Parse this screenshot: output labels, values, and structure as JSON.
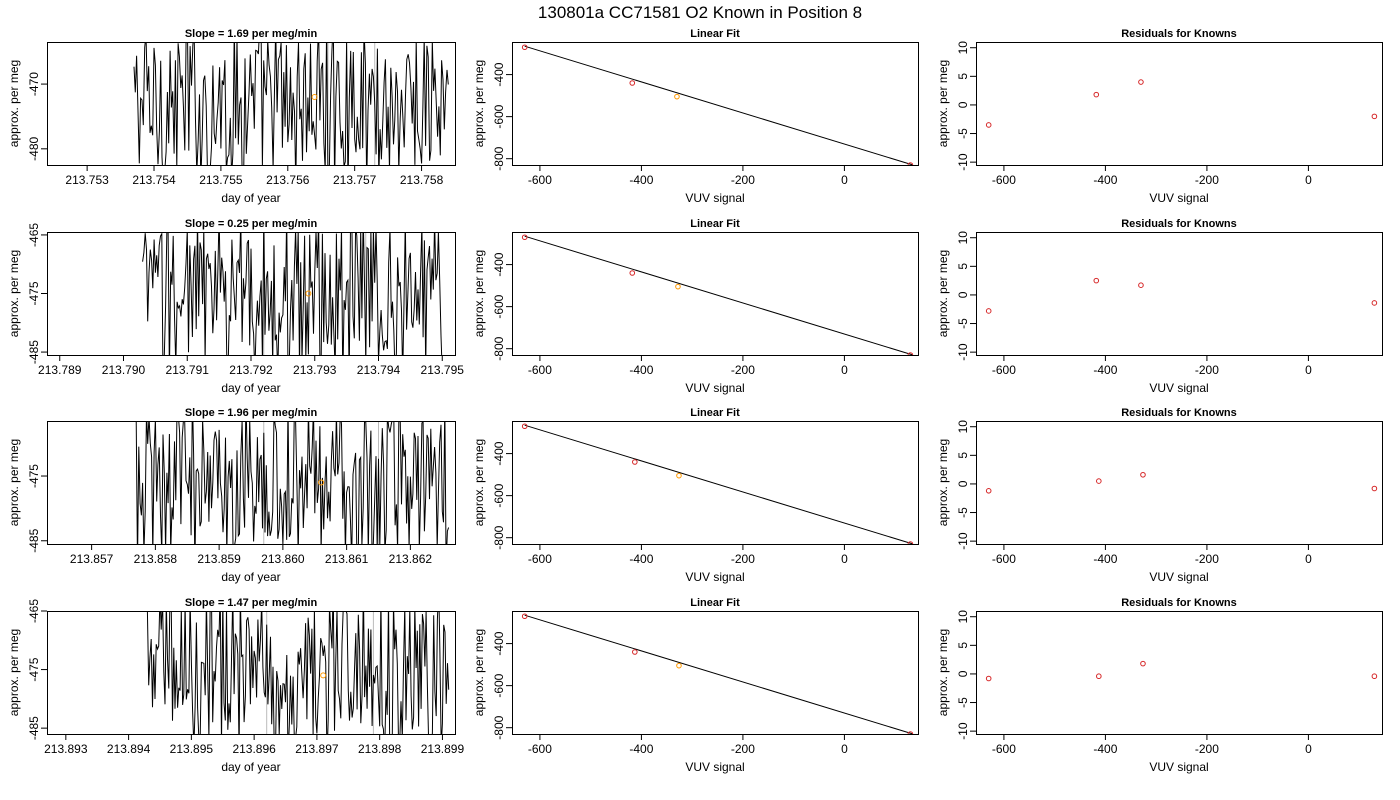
{
  "figure": {
    "title": "130801a     CC71581   O2 Known in Position  8"
  },
  "colors": {
    "line": "#000000",
    "point": "#d62728",
    "highlight": "#ff9900",
    "vline": "#bbbbbb",
    "frame": "#000000"
  },
  "chart_data": [
    {
      "type": "line",
      "title": "Slope =  1.69  per meg/min",
      "xlabel": "day of year",
      "ylabel": "approx. per meg",
      "xlim": [
        213.7524,
        213.7585
      ],
      "ylim": [
        -482.5,
        -463.5
      ],
      "xticks": [
        "213.753",
        "213.754",
        "213.755",
        "213.756",
        "213.757",
        "213.758"
      ],
      "xtick_values": [
        213.753,
        213.754,
        213.755,
        213.756,
        213.757,
        213.758
      ],
      "yticks": [
        "-480",
        "-470"
      ],
      "ytick_values": [
        -480,
        -470
      ],
      "series_start": 213.7537,
      "series_end": 213.7584,
      "series_step": 2e-05,
      "series_center": -473,
      "vlines": [
        213.7566,
        213.7573
      ],
      "highlight": {
        "x": 213.7564,
        "y": -472
      }
    },
    {
      "type": "scatter",
      "title": "Linear Fit",
      "xlabel": "VUV signal",
      "ylabel": "approx. per meg",
      "xlim": [
        -655,
        145
      ],
      "ylim": [
        -830,
        -245
      ],
      "xticks": [
        "-600",
        "-400",
        "-200",
        "0"
      ],
      "xtick_values": [
        -600,
        -400,
        -200,
        0
      ],
      "yticks": [
        "-800",
        "-600",
        "-400"
      ],
      "ytick_values": [
        -800,
        -600,
        -400
      ],
      "points": [
        [
          -630,
          -270
        ],
        [
          -418,
          -440
        ],
        [
          -330,
          -505
        ],
        [
          130,
          -830
        ]
      ],
      "highlight_index": 2,
      "fit_line": [
        [
          -630,
          -265
        ],
        [
          135,
          -830
        ]
      ]
    },
    {
      "type": "scatter",
      "title": "Residuals for Knowns",
      "xlabel": "VUV signal",
      "ylabel": "approx. per meg",
      "xlim": [
        -655,
        145
      ],
      "ylim": [
        -10.5,
        11
      ],
      "xticks": [
        "-600",
        "-400",
        "-200",
        "0"
      ],
      "xtick_values": [
        -600,
        -400,
        -200,
        0
      ],
      "yticks": [
        "-10",
        "-5",
        "0",
        "5",
        "10"
      ],
      "ytick_values": [
        -10,
        -5,
        0,
        5,
        10
      ],
      "points": [
        [
          -630,
          -3.5
        ],
        [
          -418,
          1.8
        ],
        [
          -330,
          4.0
        ],
        [
          130,
          -2.0
        ]
      ]
    },
    {
      "type": "line",
      "title": "Slope =  0.25  per meg/min",
      "xlabel": "day of year",
      "ylabel": "approx. per meg",
      "xlim": [
        213.7888,
        213.7952
      ],
      "ylim": [
        -485.5,
        -464.5
      ],
      "xticks": [
        "213.789",
        "213.790",
        "213.791",
        "213.792",
        "213.793",
        "213.794",
        "213.795"
      ],
      "xtick_values": [
        213.789,
        213.79,
        213.791,
        213.792,
        213.793,
        213.794,
        213.795
      ],
      "yticks": [
        "-485",
        "-475",
        "-465"
      ],
      "ytick_values": [
        -485,
        -475,
        -465
      ],
      "series_start": 213.7903,
      "series_end": 213.795,
      "series_step": 2e-05,
      "series_center": -475,
      "vlines": [
        213.7922,
        213.7938
      ],
      "highlight": {
        "x": 213.7929,
        "y": -475
      }
    },
    {
      "type": "scatter",
      "title": "Linear Fit",
      "xlabel": "VUV signal",
      "ylabel": "approx. per meg",
      "xlim": [
        -655,
        145
      ],
      "ylim": [
        -830,
        -245
      ],
      "xticks": [
        "-600",
        "-400",
        "-200",
        "0"
      ],
      "xtick_values": [
        -600,
        -400,
        -200,
        0
      ],
      "yticks": [
        "-800",
        "-600",
        "-400"
      ],
      "ytick_values": [
        -800,
        -600,
        -400
      ],
      "points": [
        [
          -630,
          -270
        ],
        [
          -418,
          -440
        ],
        [
          -328,
          -505
        ],
        [
          130,
          -830
        ]
      ],
      "highlight_index": 2,
      "fit_line": [
        [
          -630,
          -265
        ],
        [
          135,
          -830
        ]
      ]
    },
    {
      "type": "scatter",
      "title": "Residuals for Knowns",
      "xlabel": "VUV signal",
      "ylabel": "approx. per meg",
      "xlim": [
        -655,
        145
      ],
      "ylim": [
        -10.5,
        11
      ],
      "xticks": [
        "-600",
        "-400",
        "-200",
        "0"
      ],
      "xtick_values": [
        -600,
        -400,
        -200,
        0
      ],
      "yticks": [
        "-10",
        "-5",
        "0",
        "5",
        "10"
      ],
      "ytick_values": [
        -10,
        -5,
        0,
        5,
        10
      ],
      "points": [
        [
          -630,
          -2.8
        ],
        [
          -418,
          2.5
        ],
        [
          -330,
          1.7
        ],
        [
          130,
          -1.4
        ]
      ]
    },
    {
      "type": "line",
      "title": "Slope =  1.96  per meg/min",
      "xlabel": "day of year",
      "ylabel": "approx. per meg",
      "xlim": [
        213.8563,
        213.8627
      ],
      "ylim": [
        -485.5,
        -466.5
      ],
      "xticks": [
        "213.857",
        "213.858",
        "213.859",
        "213.860",
        "213.861",
        "213.862"
      ],
      "xtick_values": [
        213.857,
        213.858,
        213.859,
        213.86,
        213.861,
        213.862
      ],
      "yticks": [
        "-485",
        "-475"
      ],
      "ytick_values": [
        -485,
        -475
      ],
      "series_start": 213.8577,
      "series_end": 213.8626,
      "series_step": 2e-05,
      "series_center": -476,
      "vlines": [
        213.8597,
        213.8615
      ],
      "highlight": {
        "x": 213.8606,
        "y": -476
      }
    },
    {
      "type": "scatter",
      "title": "Linear Fit",
      "xlabel": "VUV signal",
      "ylabel": "approx. per meg",
      "xlim": [
        -655,
        145
      ],
      "ylim": [
        -830,
        -245
      ],
      "xticks": [
        "-600",
        "-400",
        "-200",
        "0"
      ],
      "xtick_values": [
        -600,
        -400,
        -200,
        0
      ],
      "yticks": [
        "-800",
        "-600",
        "-400"
      ],
      "ytick_values": [
        -800,
        -600,
        -400
      ],
      "points": [
        [
          -630,
          -270
        ],
        [
          -413,
          -440
        ],
        [
          -326,
          -505
        ],
        [
          130,
          -830
        ]
      ],
      "highlight_index": 2,
      "fit_line": [
        [
          -630,
          -265
        ],
        [
          135,
          -830
        ]
      ]
    },
    {
      "type": "scatter",
      "title": "Residuals for Knowns",
      "xlabel": "VUV signal",
      "ylabel": "approx. per meg",
      "xlim": [
        -655,
        145
      ],
      "ylim": [
        -10.5,
        11
      ],
      "xticks": [
        "-600",
        "-400",
        "-200",
        "0"
      ],
      "xtick_values": [
        -600,
        -400,
        -200,
        0
      ],
      "yticks": [
        "-10",
        "-5",
        "0",
        "5",
        "10"
      ],
      "ytick_values": [
        -10,
        -5,
        0,
        5,
        10
      ],
      "points": [
        [
          -630,
          -1.2
        ],
        [
          -413,
          0.5
        ],
        [
          -326,
          1.6
        ],
        [
          130,
          -0.8
        ]
      ]
    },
    {
      "type": "line",
      "title": "Slope =  1.47  per meg/min",
      "xlabel": "day of year",
      "ylabel": "approx. per meg",
      "xlim": [
        213.8927,
        213.8992
      ],
      "ylim": [
        -486,
        -465
      ],
      "xticks": [
        "213.893",
        "213.894",
        "213.895",
        "213.896",
        "213.897",
        "213.898",
        "213.899"
      ],
      "xtick_values": [
        213.893,
        213.894,
        213.895,
        213.896,
        213.897,
        213.898,
        213.899
      ],
      "yticks": [
        "-485",
        "-475",
        "-465"
      ],
      "ytick_values": [
        -485,
        -475,
        -465
      ],
      "series_start": 213.8943,
      "series_end": 213.8991,
      "series_step": 2e-05,
      "series_center": -475,
      "vlines": [
        213.8962,
        213.8979
      ],
      "highlight": {
        "x": 213.8971,
        "y": -476
      }
    },
    {
      "type": "scatter",
      "title": "Linear Fit",
      "xlabel": "VUV signal",
      "ylabel": "approx. per meg",
      "xlim": [
        -655,
        145
      ],
      "ylim": [
        -830,
        -245
      ],
      "xticks": [
        "-600",
        "-400",
        "-200",
        "0"
      ],
      "xtick_values": [
        -600,
        -400,
        -200,
        0
      ],
      "yticks": [
        "-800",
        "-600",
        "-400"
      ],
      "ytick_values": [
        -800,
        -600,
        -400
      ],
      "points": [
        [
          -630,
          -270
        ],
        [
          -413,
          -440
        ],
        [
          -326,
          -505
        ],
        [
          130,
          -830
        ]
      ],
      "highlight_index": 2,
      "fit_line": [
        [
          -630,
          -265
        ],
        [
          135,
          -830
        ]
      ]
    },
    {
      "type": "scatter",
      "title": "Residuals for Knowns",
      "xlabel": "VUV signal",
      "ylabel": "approx. per meg",
      "xlim": [
        -655,
        145
      ],
      "ylim": [
        -10.5,
        11
      ],
      "xticks": [
        "-600",
        "-400",
        "-200",
        "0"
      ],
      "xtick_values": [
        -600,
        -400,
        -200,
        0
      ],
      "yticks": [
        "-10",
        "-5",
        "0",
        "5",
        "10"
      ],
      "ytick_values": [
        -10,
        -5,
        0,
        5,
        10
      ],
      "points": [
        [
          -630,
          -0.8
        ],
        [
          -413,
          -0.4
        ],
        [
          -326,
          1.8
        ],
        [
          130,
          -0.4
        ]
      ]
    }
  ]
}
